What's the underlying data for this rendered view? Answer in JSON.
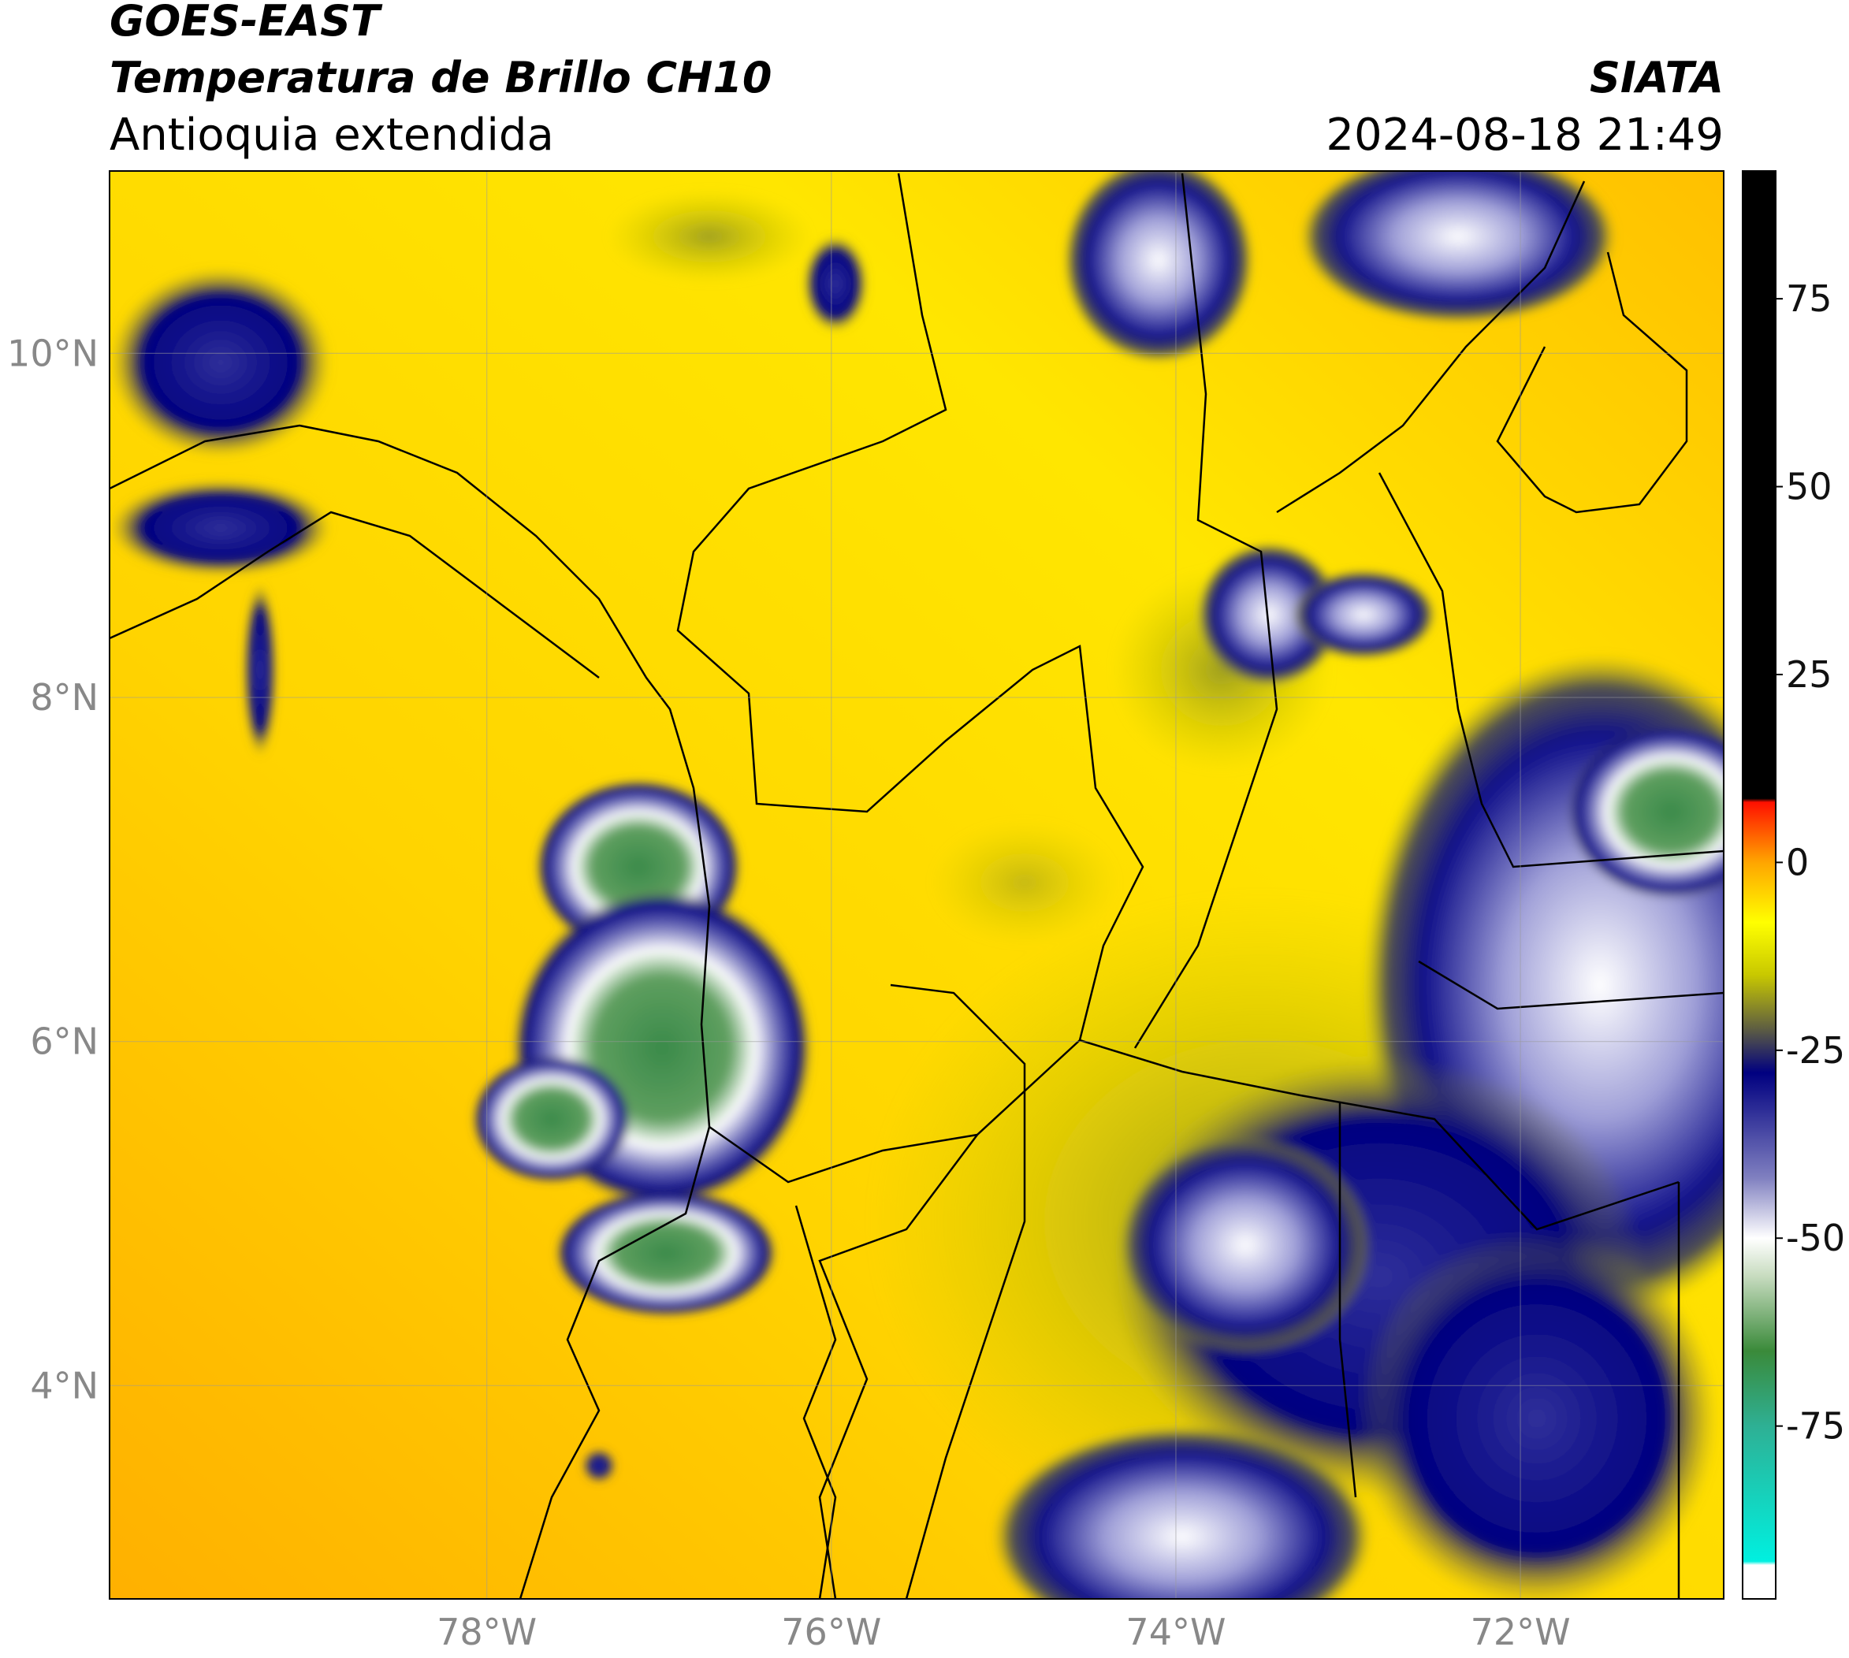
{
  "header": {
    "title": "GOES-EAST",
    "subtitle": "Temperatura de Brillo CH10",
    "region": "Antioquia extendida",
    "source": "SIATA",
    "datetime": "2024-08-18 21:49"
  },
  "chart_data": {
    "type": "map",
    "xlim": [
      -80.19,
      -70.82
    ],
    "ylim": [
      2.76,
      11.06
    ],
    "xticks": [
      {
        "value": -78,
        "label": "78°W"
      },
      {
        "value": -76,
        "label": "76°W"
      },
      {
        "value": -74,
        "label": "74°W"
      },
      {
        "value": -72,
        "label": "72°W"
      }
    ],
    "yticks": [
      {
        "value": 4,
        "label": "4°N"
      },
      {
        "value": 6,
        "label": "6°N"
      },
      {
        "value": 8,
        "label": "8°N"
      },
      {
        "value": 10,
        "label": "10°N"
      }
    ],
    "grid": true,
    "colorbar": {
      "lim": [
        -98,
        92
      ],
      "ticks": [
        -75,
        -50,
        -25,
        0,
        25,
        50,
        75
      ],
      "stops": [
        {
          "value": -98,
          "color": "#ffffff"
        },
        {
          "value": -93.5,
          "color": "#ffffff"
        },
        {
          "value": -93,
          "color": "#00f0e0"
        },
        {
          "value": -75,
          "color": "#2eb094"
        },
        {
          "value": -65,
          "color": "#3a8a3a"
        },
        {
          "value": -55,
          "color": "#c8dcc0"
        },
        {
          "value": -50,
          "color": "#ffffff"
        },
        {
          "value": -42,
          "color": "#8080c0"
        },
        {
          "value": -28,
          "color": "#000080"
        },
        {
          "value": -22,
          "color": "#606040"
        },
        {
          "value": -15,
          "color": "#c8c800"
        },
        {
          "value": -8,
          "color": "#ffff00"
        },
        {
          "value": 0,
          "color": "#ffa500"
        },
        {
          "value": 8,
          "color": "#ff1000"
        },
        {
          "value": 8.5,
          "color": "#000000"
        },
        {
          "value": 92,
          "color": "#000000"
        }
      ]
    }
  }
}
